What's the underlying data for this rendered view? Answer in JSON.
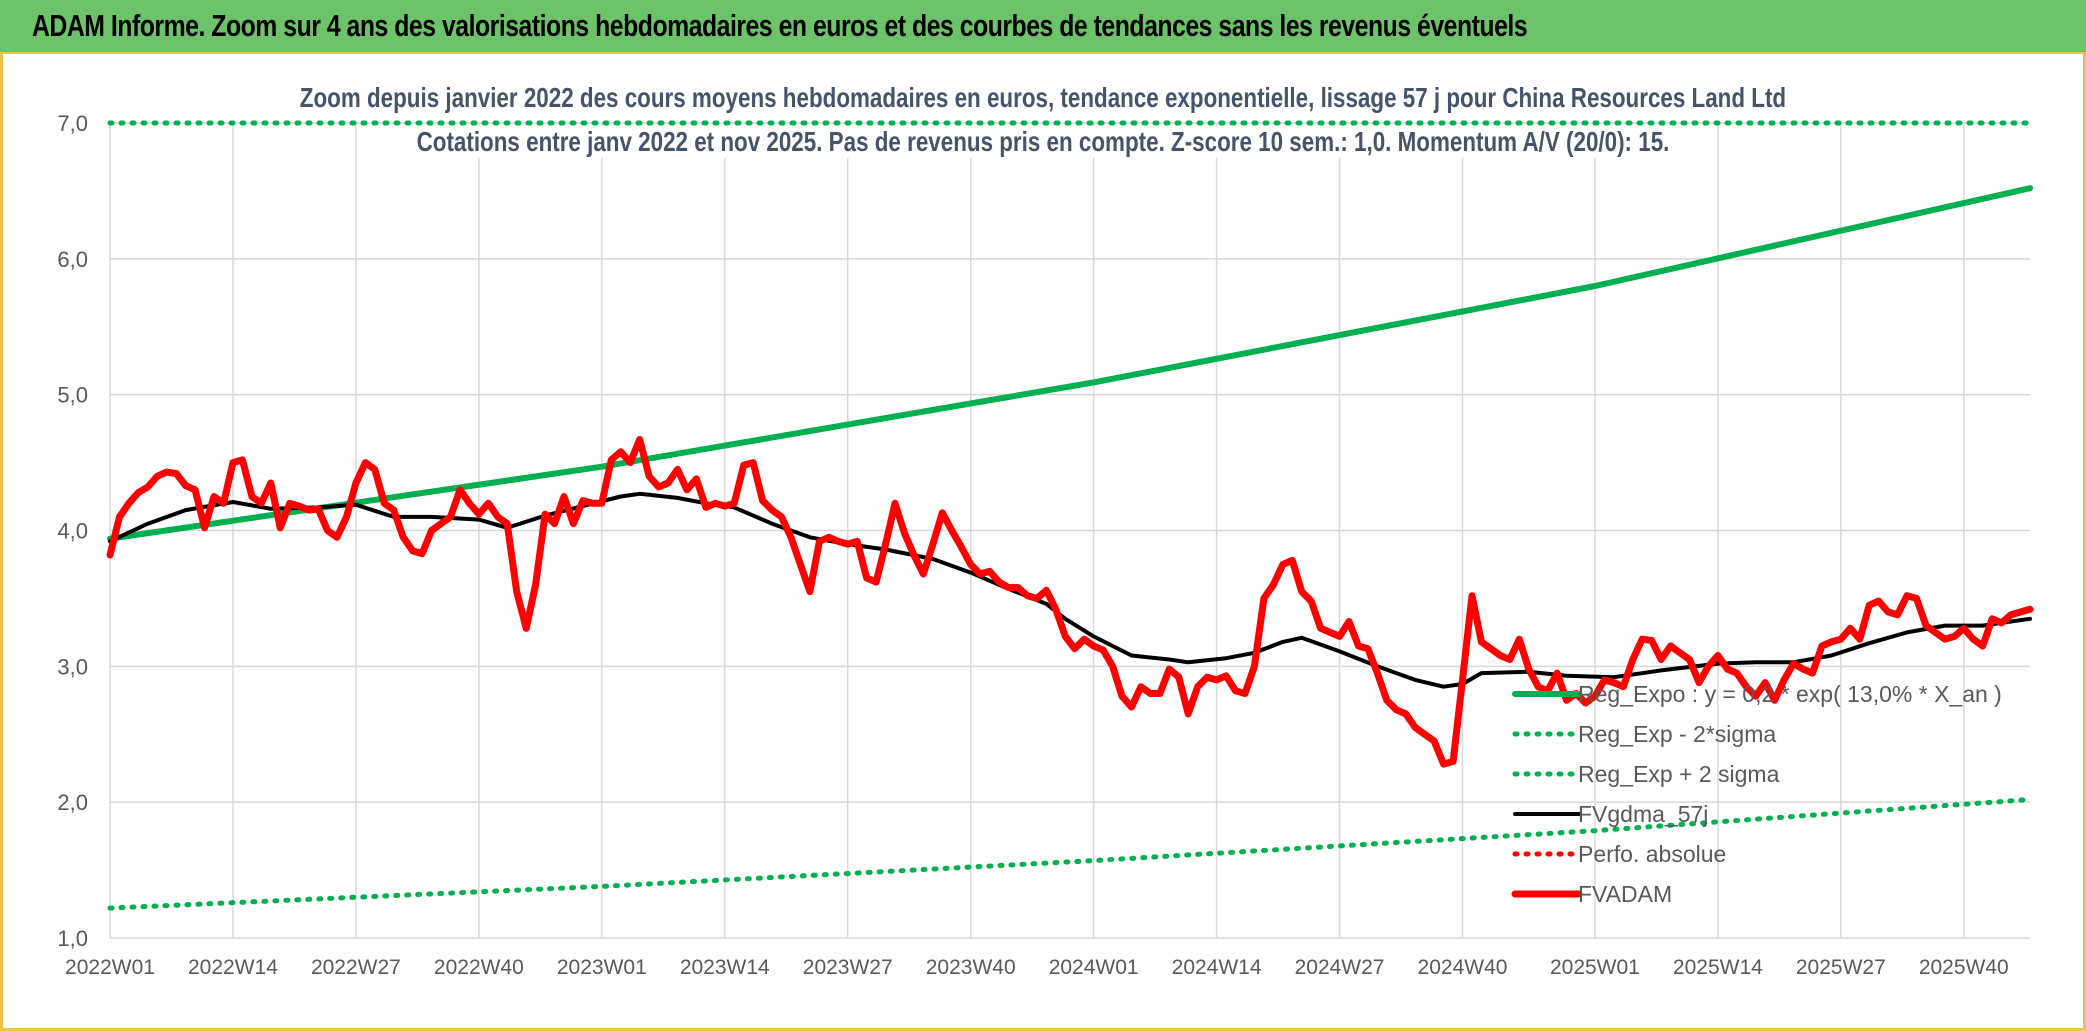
{
  "header": {
    "title": "ADAM Informe. Zoom sur 4 ans des valorisations hebdomadaires en euros et des courbes de tendances sans les revenus éventuels"
  },
  "chart_data": {
    "type": "line",
    "title": "Zoom depuis janvier 2022 des cours moyens hebdomadaires en euros, tendance exponentielle, lissage 57 j pour China Resources Land Ltd",
    "subtitle": "Cotations entre janv 2022 et nov 2025. Pas de revenus pris en compte. Z-score 10 sem.: 1,0. Momentum A/V (20/0): 15.",
    "xlabel": "",
    "ylabel": "",
    "ylim": [
      1.0,
      7.0
    ],
    "yticks": [
      "1,0",
      "2,0",
      "3,0",
      "4,0",
      "5,0",
      "6,0",
      "7,0"
    ],
    "x_range_weeks": [
      0,
      203
    ],
    "xticks": [
      {
        "label": "2022W01",
        "week": 0
      },
      {
        "label": "2022W14",
        "week": 13
      },
      {
        "label": "2022W27",
        "week": 26
      },
      {
        "label": "2022W40",
        "week": 39
      },
      {
        "label": "2023W01",
        "week": 52
      },
      {
        "label": "2023W14",
        "week": 65
      },
      {
        "label": "2023W27",
        "week": 78
      },
      {
        "label": "2023W40",
        "week": 91
      },
      {
        "label": "2024W01",
        "week": 104
      },
      {
        "label": "2024W14",
        "week": 117
      },
      {
        "label": "2024W27",
        "week": 130
      },
      {
        "label": "2024W40",
        "week": 143
      },
      {
        "label": "2025W01",
        "week": 157
      },
      {
        "label": "2025W14",
        "week": 170
      },
      {
        "label": "2025W27",
        "week": 183
      },
      {
        "label": "2025W40",
        "week": 196
      }
    ],
    "grid": true,
    "legend_position": "bottom-right",
    "series": [
      {
        "name": "Reg_Expo : y = 0,2 * exp( 13,0% *  X_an )",
        "color": "#00b050",
        "style": "solid",
        "points": [
          [
            0,
            3.94
          ],
          [
            52,
            4.47
          ],
          [
            104,
            5.09
          ],
          [
            157,
            5.8
          ],
          [
            203,
            6.52
          ]
        ]
      },
      {
        "name": "Reg_Exp - 2*sigma",
        "color": "#00b050",
        "style": "dotted",
        "points": [
          [
            0,
            1.22
          ],
          [
            52,
            1.38
          ],
          [
            104,
            1.57
          ],
          [
            157,
            1.79
          ],
          [
            203,
            2.02
          ]
        ]
      },
      {
        "name": "Reg_Exp + 2 sigma",
        "color": "#00b050",
        "style": "dotted",
        "points": [
          [
            0,
            7.0
          ],
          [
            203,
            7.0
          ]
        ]
      },
      {
        "name": "FVgdma_57j",
        "color": "#000000",
        "style": "solid",
        "points": [
          [
            0,
            3.92
          ],
          [
            4,
            4.05
          ],
          [
            8,
            4.15
          ],
          [
            13,
            4.21
          ],
          [
            17,
            4.16
          ],
          [
            22,
            4.17
          ],
          [
            26,
            4.19
          ],
          [
            30,
            4.1
          ],
          [
            34,
            4.1
          ],
          [
            39,
            4.08
          ],
          [
            42,
            4.02
          ],
          [
            46,
            4.11
          ],
          [
            50,
            4.18
          ],
          [
            54,
            4.25
          ],
          [
            56,
            4.27
          ],
          [
            60,
            4.24
          ],
          [
            63,
            4.2
          ],
          [
            66,
            4.17
          ],
          [
            70,
            4.05
          ],
          [
            74,
            3.95
          ],
          [
            78,
            3.9
          ],
          [
            82,
            3.86
          ],
          [
            87,
            3.79
          ],
          [
            91,
            3.69
          ],
          [
            95,
            3.57
          ],
          [
            99,
            3.46
          ],
          [
            101,
            3.35
          ],
          [
            104,
            3.22
          ],
          [
            108,
            3.08
          ],
          [
            112,
            3.05
          ],
          [
            114,
            3.03
          ],
          [
            118,
            3.06
          ],
          [
            121,
            3.1
          ],
          [
            124,
            3.18
          ],
          [
            126,
            3.21
          ],
          [
            130,
            3.11
          ],
          [
            134,
            3.0
          ],
          [
            138,
            2.9
          ],
          [
            141,
            2.85
          ],
          [
            143,
            2.87
          ],
          [
            145,
            2.95
          ],
          [
            150,
            2.96
          ],
          [
            154,
            2.93
          ],
          [
            159,
            2.92
          ],
          [
            164,
            2.97
          ],
          [
            170,
            3.02
          ],
          [
            174,
            3.03
          ],
          [
            178,
            3.03
          ],
          [
            182,
            3.08
          ],
          [
            186,
            3.17
          ],
          [
            190,
            3.25
          ],
          [
            194,
            3.3
          ],
          [
            198,
            3.3
          ],
          [
            203,
            3.35
          ]
        ]
      },
      {
        "name": "Perfo. absolue",
        "color": "#ff0000",
        "style": "dotted",
        "points": []
      },
      {
        "name": "FVADAM",
        "color": "#ff0000",
        "style": "solid",
        "points": [
          [
            0,
            3.82
          ],
          [
            1,
            4.1
          ],
          [
            2,
            4.2
          ],
          [
            3,
            4.28
          ],
          [
            4,
            4.32
          ],
          [
            5,
            4.4
          ],
          [
            6,
            4.43
          ],
          [
            7,
            4.42
          ],
          [
            8,
            4.33
          ],
          [
            9,
            4.3
          ],
          [
            10,
            4.02
          ],
          [
            11,
            4.25
          ],
          [
            12,
            4.2
          ],
          [
            13,
            4.5
          ],
          [
            14,
            4.52
          ],
          [
            15,
            4.25
          ],
          [
            16,
            4.2
          ],
          [
            17,
            4.35
          ],
          [
            18,
            4.02
          ],
          [
            19,
            4.2
          ],
          [
            20,
            4.18
          ],
          [
            21,
            4.15
          ],
          [
            22,
            4.16
          ],
          [
            23,
            4.0
          ],
          [
            24,
            3.95
          ],
          [
            25,
            4.1
          ],
          [
            26,
            4.35
          ],
          [
            27,
            4.5
          ],
          [
            28,
            4.45
          ],
          [
            29,
            4.2
          ],
          [
            30,
            4.15
          ],
          [
            31,
            3.95
          ],
          [
            32,
            3.85
          ],
          [
            33,
            3.83
          ],
          [
            34,
            4.0
          ],
          [
            35,
            4.05
          ],
          [
            36,
            4.1
          ],
          [
            37,
            4.3
          ],
          [
            38,
            4.2
          ],
          [
            39,
            4.12
          ],
          [
            40,
            4.2
          ],
          [
            41,
            4.1
          ],
          [
            42,
            4.05
          ],
          [
            43,
            3.55
          ],
          [
            44,
            3.28
          ],
          [
            45,
            3.6
          ],
          [
            46,
            4.12
          ],
          [
            47,
            4.05
          ],
          [
            48,
            4.25
          ],
          [
            49,
            4.05
          ],
          [
            50,
            4.22
          ],
          [
            51,
            4.2
          ],
          [
            52,
            4.2
          ],
          [
            53,
            4.52
          ],
          [
            54,
            4.58
          ],
          [
            55,
            4.5
          ],
          [
            56,
            4.67
          ],
          [
            57,
            4.4
          ],
          [
            58,
            4.32
          ],
          [
            59,
            4.35
          ],
          [
            60,
            4.45
          ],
          [
            61,
            4.3
          ],
          [
            62,
            4.38
          ],
          [
            63,
            4.17
          ],
          [
            64,
            4.2
          ],
          [
            65,
            4.18
          ],
          [
            66,
            4.2
          ],
          [
            67,
            4.48
          ],
          [
            68,
            4.5
          ],
          [
            69,
            4.22
          ],
          [
            70,
            4.15
          ],
          [
            71,
            4.1
          ],
          [
            72,
            3.95
          ],
          [
            73,
            3.75
          ],
          [
            74,
            3.55
          ],
          [
            75,
            3.92
          ],
          [
            76,
            3.95
          ],
          [
            77,
            3.92
          ],
          [
            78,
            3.9
          ],
          [
            79,
            3.92
          ],
          [
            80,
            3.65
          ],
          [
            81,
            3.62
          ],
          [
            82,
            3.9
          ],
          [
            83,
            4.2
          ],
          [
            84,
            3.98
          ],
          [
            85,
            3.82
          ],
          [
            86,
            3.68
          ],
          [
            87,
            3.9
          ],
          [
            88,
            4.13
          ],
          [
            89,
            4.0
          ],
          [
            90,
            3.88
          ],
          [
            91,
            3.75
          ],
          [
            92,
            3.68
          ],
          [
            93,
            3.7
          ],
          [
            94,
            3.62
          ],
          [
            95,
            3.58
          ],
          [
            96,
            3.58
          ],
          [
            97,
            3.52
          ],
          [
            98,
            3.5
          ],
          [
            99,
            3.56
          ],
          [
            100,
            3.42
          ],
          [
            101,
            3.22
          ],
          [
            102,
            3.13
          ],
          [
            103,
            3.2
          ],
          [
            104,
            3.15
          ],
          [
            105,
            3.12
          ],
          [
            106,
            3.0
          ],
          [
            107,
            2.78
          ],
          [
            108,
            2.7
          ],
          [
            109,
            2.85
          ],
          [
            110,
            2.8
          ],
          [
            111,
            2.8
          ],
          [
            112,
            2.98
          ],
          [
            113,
            2.92
          ],
          [
            114,
            2.65
          ],
          [
            115,
            2.85
          ],
          [
            116,
            2.92
          ],
          [
            117,
            2.9
          ],
          [
            118,
            2.93
          ],
          [
            119,
            2.82
          ],
          [
            120,
            2.8
          ],
          [
            121,
            3.0
          ],
          [
            122,
            3.5
          ],
          [
            123,
            3.6
          ],
          [
            124,
            3.75
          ],
          [
            125,
            3.78
          ],
          [
            126,
            3.55
          ],
          [
            127,
            3.48
          ],
          [
            128,
            3.28
          ],
          [
            129,
            3.25
          ],
          [
            130,
            3.22
          ],
          [
            131,
            3.33
          ],
          [
            132,
            3.15
          ],
          [
            133,
            3.13
          ],
          [
            134,
            2.95
          ],
          [
            135,
            2.75
          ],
          [
            136,
            2.68
          ],
          [
            137,
            2.65
          ],
          [
            138,
            2.55
          ],
          [
            139,
            2.5
          ],
          [
            140,
            2.45
          ],
          [
            141,
            2.28
          ],
          [
            142,
            2.3
          ],
          [
            143,
            2.9
          ],
          [
            144,
            3.52
          ],
          [
            145,
            3.18
          ],
          [
            146,
            3.13
          ],
          [
            147,
            3.08
          ],
          [
            148,
            3.05
          ],
          [
            149,
            3.2
          ],
          [
            150,
            2.98
          ],
          [
            151,
            2.85
          ],
          [
            152,
            2.82
          ],
          [
            153,
            2.95
          ],
          [
            154,
            2.75
          ],
          [
            155,
            2.8
          ],
          [
            156,
            2.73
          ],
          [
            157,
            2.78
          ],
          [
            158,
            2.9
          ],
          [
            159,
            2.88
          ],
          [
            160,
            2.85
          ],
          [
            161,
            3.05
          ],
          [
            162,
            3.2
          ],
          [
            163,
            3.19
          ],
          [
            164,
            3.05
          ],
          [
            165,
            3.15
          ],
          [
            166,
            3.1
          ],
          [
            167,
            3.05
          ],
          [
            168,
            2.88
          ],
          [
            169,
            3.0
          ],
          [
            170,
            3.08
          ],
          [
            171,
            2.98
          ],
          [
            172,
            2.95
          ],
          [
            173,
            2.85
          ],
          [
            174,
            2.78
          ],
          [
            175,
            2.88
          ],
          [
            176,
            2.75
          ],
          [
            177,
            2.9
          ],
          [
            178,
            3.02
          ],
          [
            179,
            2.98
          ],
          [
            180,
            2.95
          ],
          [
            181,
            3.15
          ],
          [
            182,
            3.18
          ],
          [
            183,
            3.2
          ],
          [
            184,
            3.28
          ],
          [
            185,
            3.2
          ],
          [
            186,
            3.45
          ],
          [
            187,
            3.48
          ],
          [
            188,
            3.4
          ],
          [
            189,
            3.38
          ],
          [
            190,
            3.52
          ],
          [
            191,
            3.5
          ],
          [
            192,
            3.3
          ],
          [
            193,
            3.25
          ],
          [
            194,
            3.2
          ],
          [
            195,
            3.22
          ],
          [
            196,
            3.28
          ],
          [
            197,
            3.2
          ],
          [
            198,
            3.15
          ],
          [
            199,
            3.35
          ],
          [
            200,
            3.32
          ],
          [
            201,
            3.38
          ],
          [
            202,
            3.4
          ],
          [
            203,
            3.42
          ]
        ]
      }
    ]
  }
}
